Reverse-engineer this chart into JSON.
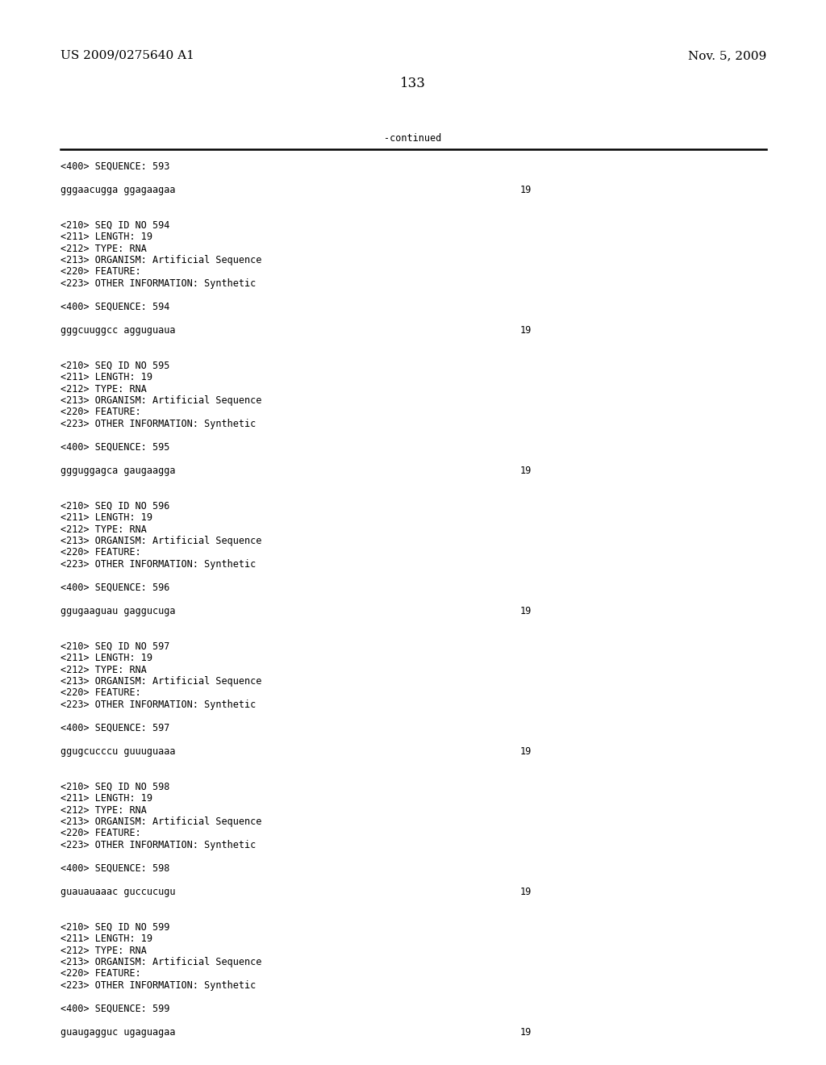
{
  "patent_left": "US 2009/0275640 A1",
  "patent_right": "Nov. 5, 2009",
  "page_number": "133",
  "continued_label": "-continued",
  "background_color": "#ffffff",
  "text_color": "#000000",
  "font_size_header": 11.0,
  "font_size_body": 8.5,
  "content": [
    {
      "type": "seq400",
      "text": "<400> SEQUENCE: 593"
    },
    {
      "type": "blank"
    },
    {
      "type": "sequence",
      "seq": "gggaacugga ggagaagaa",
      "num": "19"
    },
    {
      "type": "blank"
    },
    {
      "type": "blank"
    },
    {
      "type": "seq210",
      "text": "<210> SEQ ID NO 594"
    },
    {
      "type": "seq210",
      "text": "<211> LENGTH: 19"
    },
    {
      "type": "seq210",
      "text": "<212> TYPE: RNA"
    },
    {
      "type": "seq210",
      "text": "<213> ORGANISM: Artificial Sequence"
    },
    {
      "type": "seq210",
      "text": "<220> FEATURE:"
    },
    {
      "type": "seq210",
      "text": "<223> OTHER INFORMATION: Synthetic"
    },
    {
      "type": "blank"
    },
    {
      "type": "seq400",
      "text": "<400> SEQUENCE: 594"
    },
    {
      "type": "blank"
    },
    {
      "type": "sequence",
      "seq": "gggcuuggcc agguguaua",
      "num": "19"
    },
    {
      "type": "blank"
    },
    {
      "type": "blank"
    },
    {
      "type": "seq210",
      "text": "<210> SEQ ID NO 595"
    },
    {
      "type": "seq210",
      "text": "<211> LENGTH: 19"
    },
    {
      "type": "seq210",
      "text": "<212> TYPE: RNA"
    },
    {
      "type": "seq210",
      "text": "<213> ORGANISM: Artificial Sequence"
    },
    {
      "type": "seq210",
      "text": "<220> FEATURE:"
    },
    {
      "type": "seq210",
      "text": "<223> OTHER INFORMATION: Synthetic"
    },
    {
      "type": "blank"
    },
    {
      "type": "seq400",
      "text": "<400> SEQUENCE: 595"
    },
    {
      "type": "blank"
    },
    {
      "type": "sequence",
      "seq": "ggguggagca gaugaagga",
      "num": "19"
    },
    {
      "type": "blank"
    },
    {
      "type": "blank"
    },
    {
      "type": "seq210",
      "text": "<210> SEQ ID NO 596"
    },
    {
      "type": "seq210",
      "text": "<211> LENGTH: 19"
    },
    {
      "type": "seq210",
      "text": "<212> TYPE: RNA"
    },
    {
      "type": "seq210",
      "text": "<213> ORGANISM: Artificial Sequence"
    },
    {
      "type": "seq210",
      "text": "<220> FEATURE:"
    },
    {
      "type": "seq210",
      "text": "<223> OTHER INFORMATION: Synthetic"
    },
    {
      "type": "blank"
    },
    {
      "type": "seq400",
      "text": "<400> SEQUENCE: 596"
    },
    {
      "type": "blank"
    },
    {
      "type": "sequence",
      "seq": "ggugaaguau gaggucuga",
      "num": "19"
    },
    {
      "type": "blank"
    },
    {
      "type": "blank"
    },
    {
      "type": "seq210",
      "text": "<210> SEQ ID NO 597"
    },
    {
      "type": "seq210",
      "text": "<211> LENGTH: 19"
    },
    {
      "type": "seq210",
      "text": "<212> TYPE: RNA"
    },
    {
      "type": "seq210",
      "text": "<213> ORGANISM: Artificial Sequence"
    },
    {
      "type": "seq210",
      "text": "<220> FEATURE:"
    },
    {
      "type": "seq210",
      "text": "<223> OTHER INFORMATION: Synthetic"
    },
    {
      "type": "blank"
    },
    {
      "type": "seq400",
      "text": "<400> SEQUENCE: 597"
    },
    {
      "type": "blank"
    },
    {
      "type": "sequence",
      "seq": "ggugcucccu guuuguaaa",
      "num": "19"
    },
    {
      "type": "blank"
    },
    {
      "type": "blank"
    },
    {
      "type": "seq210",
      "text": "<210> SEQ ID NO 598"
    },
    {
      "type": "seq210",
      "text": "<211> LENGTH: 19"
    },
    {
      "type": "seq210",
      "text": "<212> TYPE: RNA"
    },
    {
      "type": "seq210",
      "text": "<213> ORGANISM: Artificial Sequence"
    },
    {
      "type": "seq210",
      "text": "<220> FEATURE:"
    },
    {
      "type": "seq210",
      "text": "<223> OTHER INFORMATION: Synthetic"
    },
    {
      "type": "blank"
    },
    {
      "type": "seq400",
      "text": "<400> SEQUENCE: 598"
    },
    {
      "type": "blank"
    },
    {
      "type": "sequence",
      "seq": "guauauaaac guccucugu",
      "num": "19"
    },
    {
      "type": "blank"
    },
    {
      "type": "blank"
    },
    {
      "type": "seq210",
      "text": "<210> SEQ ID NO 599"
    },
    {
      "type": "seq210",
      "text": "<211> LENGTH: 19"
    },
    {
      "type": "seq210",
      "text": "<212> TYPE: RNA"
    },
    {
      "type": "seq210",
      "text": "<213> ORGANISM: Artificial Sequence"
    },
    {
      "type": "seq210",
      "text": "<220> FEATURE:"
    },
    {
      "type": "seq210",
      "text": "<223> OTHER INFORMATION: Synthetic"
    },
    {
      "type": "blank"
    },
    {
      "type": "seq400",
      "text": "<400> SEQUENCE: 599"
    },
    {
      "type": "blank"
    },
    {
      "type": "sequence",
      "seq": "guaugagguc ugaguagaa",
      "num": "19"
    }
  ]
}
